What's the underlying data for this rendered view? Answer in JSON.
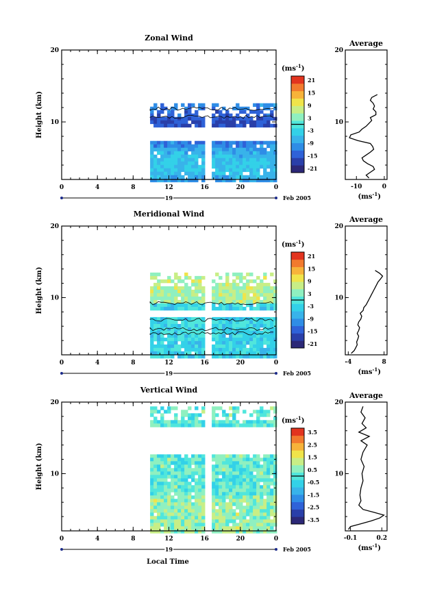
{
  "footer": {
    "xlabel": "Local Time"
  },
  "colors": {
    "scale": [
      "#2c2877",
      "#2a3fa9",
      "#2f62d8",
      "#2f8de6",
      "#38b3ea",
      "#33d1e8",
      "#50e6dc",
      "#8ff0c0",
      "#c8ee86",
      "#f0e44a",
      "#f7b33a",
      "#f27a2e",
      "#e2341f"
    ],
    "contour": "#000000",
    "panel_border": "#000000"
  },
  "chart_data": [
    {
      "type": "heatmap",
      "title": "Zonal Wind",
      "ylabel": "Height (km)",
      "ylim": [
        2,
        20
      ],
      "yticks": [
        "20",
        "10"
      ],
      "xticks": [
        "0",
        "4",
        "8",
        "12",
        "16",
        "20",
        "0"
      ],
      "xlim": [
        0,
        24
      ],
      "date_label": "19",
      "month_label": "Feb 2005",
      "colorbar": {
        "unit": "(ms",
        "unit_exp": "-1",
        "unit_close": ")",
        "labels": [
          "21",
          "15",
          "9",
          "3",
          "-3",
          "-9",
          "-15",
          "-21"
        ],
        "range": [
          -24,
          24
        ]
      },
      "data_extent": {
        "time_start": 9.9,
        "time_end": 24,
        "gap_time": 16.2,
        "height_top": 12.6,
        "blank_band": [
          7.8,
          8.8
        ]
      },
      "profile": {
        "title": "Average",
        "yticks": [
          "20",
          "10"
        ],
        "xticks": [
          "-10",
          "0"
        ],
        "xlim": [
          -14,
          1
        ],
        "xunit": "(ms",
        "xunit_exp": "-1",
        "xunit_close": ")",
        "heights": [
          2.2,
          2.6,
          3.0,
          3.4,
          3.8,
          4.2,
          4.6,
          5.0,
          5.4,
          5.8,
          6.2,
          6.6,
          7.0,
          7.4,
          7.8,
          8.2,
          8.6,
          9.0,
          9.4,
          9.8,
          10.2,
          10.6,
          11.0,
          11.4,
          11.8,
          12.2,
          12.6,
          13.0,
          13.4,
          13.8
        ],
        "values": [
          -5.5,
          -6.5,
          -5.0,
          -3.5,
          -4.0,
          -6.0,
          -7.5,
          -8.0,
          -6.5,
          -5.0,
          -3.8,
          -4.2,
          -5.0,
          -9.5,
          -12.5,
          -12.0,
          -9.0,
          -8.0,
          -6.5,
          -5.5,
          -4.5,
          -5.0,
          -3.0,
          -3.0,
          -4.0,
          -3.5,
          -4.0,
          -5.0,
          -4.5,
          -2.5
        ]
      }
    },
    {
      "type": "heatmap",
      "title": "Meridional Wind",
      "ylabel": "Height (km)",
      "ylim": [
        2,
        20
      ],
      "yticks": [
        "20",
        "10"
      ],
      "xticks": [
        "0",
        "4",
        "8",
        "12",
        "16",
        "20",
        "0"
      ],
      "xlim": [
        0,
        24
      ],
      "date_label": "19",
      "month_label": "Feb 2005",
      "colorbar": {
        "unit": "(ms",
        "unit_exp": "-1",
        "unit_close": ")",
        "labels": [
          "21",
          "15",
          "9",
          "3",
          "-3",
          "-9",
          "-15",
          "-21"
        ],
        "range": [
          -24,
          24
        ]
      },
      "data_extent": {
        "time_start": 9.9,
        "time_end": 24,
        "gap_time": 16.2,
        "height_top": 13.5,
        "blank_band": [
          7.4,
          7.9
        ]
      },
      "profile": {
        "title": "Average",
        "yticks": [
          "20",
          "10"
        ],
        "xticks": [
          "-4",
          "8"
        ],
        "xlim": [
          -5,
          9
        ],
        "xunit": "(ms",
        "xunit_exp": "-1",
        "xunit_close": ")",
        "heights": [
          2.2,
          2.6,
          3.0,
          3.4,
          3.8,
          4.2,
          4.6,
          5.0,
          5.4,
          5.8,
          6.2,
          6.6,
          7.0,
          7.4,
          7.8,
          8.2,
          8.6,
          9.0,
          9.4,
          9.8,
          10.2,
          10.6,
          11.0,
          11.4,
          11.8,
          12.2,
          12.6,
          13.0,
          13.4,
          13.8
        ],
        "values": [
          -3.0,
          -2.0,
          -1.5,
          -1.0,
          -1.2,
          -0.8,
          -0.5,
          -1.0,
          -0.5,
          -0.2,
          -0.8,
          -0.5,
          0.2,
          0.5,
          0.0,
          1.0,
          1.2,
          2.0,
          2.5,
          3.0,
          3.5,
          4.0,
          4.5,
          5.0,
          5.5,
          6.0,
          6.8,
          7.5,
          6.5,
          5.0
        ]
      }
    },
    {
      "type": "heatmap",
      "title": "Vertical Wind",
      "ylabel": "Height (km)",
      "ylim": [
        2,
        20
      ],
      "yticks": [
        "20",
        "10"
      ],
      "xticks": [
        "0",
        "4",
        "8",
        "12",
        "16",
        "20",
        "0"
      ],
      "xlim": [
        0,
        24
      ],
      "date_label": "19",
      "month_label": "Feb 2005",
      "colorbar": {
        "unit": "(ms",
        "unit_exp": "-1",
        "unit_close": ")",
        "labels": [
          "3.5",
          "2.5",
          "1.5",
          "0.5",
          "-0.5",
          "-1.5",
          "-2.5",
          "-3.5"
        ],
        "range": [
          -4,
          4
        ]
      },
      "data_extent": {
        "time_start": 9.9,
        "time_end": 24,
        "gap_time": 16.2,
        "height_top": 19.4,
        "blank_band": [
          13.0,
          16.5
        ]
      },
      "profile": {
        "title": "Average",
        "yticks": [
          "20",
          "10"
        ],
        "xticks": [
          "-0.1",
          "0.2"
        ],
        "xlim": [
          -0.15,
          0.25
        ],
        "xunit": "(ms",
        "xunit_exp": "-1",
        "xunit_close": ")",
        "heights": [
          2.2,
          2.6,
          3.0,
          3.4,
          3.8,
          4.2,
          4.6,
          5.0,
          5.6,
          6.2,
          7.0,
          8.0,
          9.0,
          10.0,
          11.0,
          12.0,
          13.0,
          14.0,
          14.6,
          15.2,
          15.8,
          16.4,
          17.0,
          17.8,
          18.6,
          19.4
        ],
        "values": [
          -0.12,
          -0.1,
          0.0,
          0.1,
          0.18,
          0.22,
          0.12,
          0.02,
          -0.02,
          0.0,
          -0.01,
          0.0,
          0.02,
          0.01,
          0.03,
          0.0,
          0.02,
          0.06,
          0.0,
          0.08,
          -0.02,
          0.05,
          0.01,
          0.04,
          0.0,
          0.02
        ]
      }
    }
  ]
}
